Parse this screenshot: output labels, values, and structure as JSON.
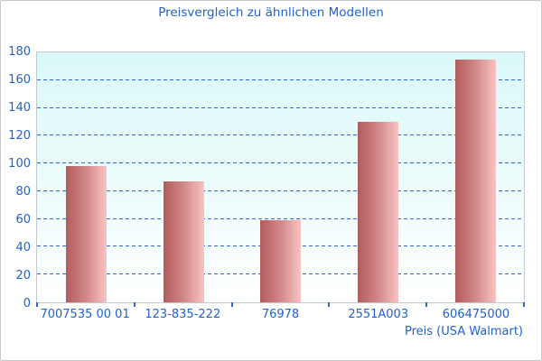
{
  "window": {
    "background": "#ffffff",
    "border_color": "#c9c9c9"
  },
  "chart_data": {
    "type": "bar",
    "title": "Preisvergleich zu ähnlichen Modellen",
    "categories": [
      "7007535 00 01",
      "123-835-222",
      "76978",
      "2551A003",
      "606475000"
    ],
    "values": [
      98,
      87,
      59,
      130,
      175
    ],
    "xlabel": "Preis (USA Walmart)",
    "ylabel": "",
    "ylim": [
      0,
      180
    ],
    "ytick_step": 20,
    "yticks": [
      0,
      20,
      40,
      60,
      80,
      100,
      120,
      140,
      160,
      180
    ],
    "grid": "horizontal-dashed",
    "legend": "none",
    "colors": {
      "title_text": "#2061cf",
      "axis_text": "#2061cf",
      "gridline": "#3366cc",
      "tick": "#3366cc",
      "bar_gradient_left": "#b25c5c",
      "bar_gradient_right": "#f9c3c3",
      "plot_bg_top": "#d9f8f8",
      "plot_bg_bottom": "#ffffff",
      "plot_border": "#c2cacf"
    }
  }
}
